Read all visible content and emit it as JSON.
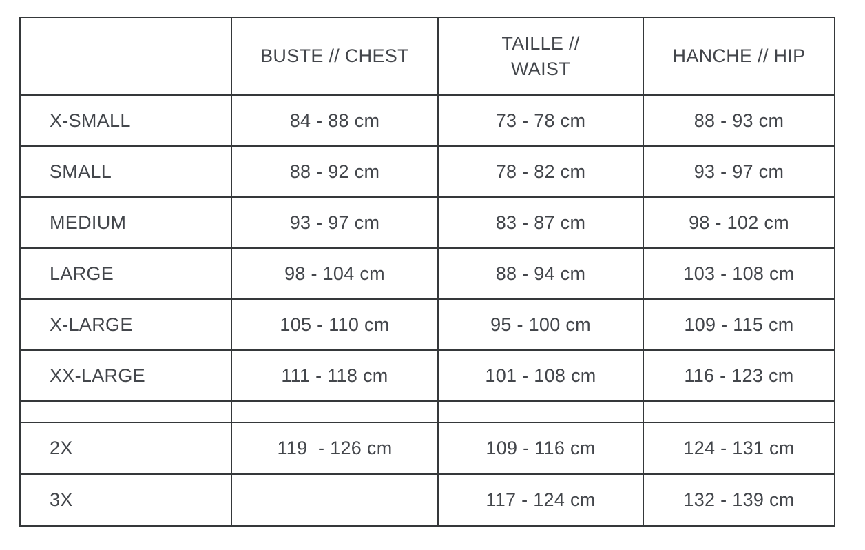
{
  "table": {
    "columns": [
      "",
      "BUSTE // CHEST",
      "TAILLE //\nWAIST",
      "HANCHE // HIP"
    ],
    "rows": [
      {
        "size": "X-SMALL",
        "chest": "84 - 88 cm",
        "waist": "73 - 78 cm",
        "hip": "88 - 93 cm",
        "spacer": false
      },
      {
        "size": "SMALL",
        "chest": "88 - 92 cm",
        "waist": "78 - 82 cm",
        "hip": "93 - 97 cm",
        "spacer": false
      },
      {
        "size": "MEDIUM",
        "chest": "93 - 97 cm",
        "waist": "83 - 87 cm",
        "hip": "98 - 102 cm",
        "spacer": false
      },
      {
        "size": "LARGE",
        "chest": "98 - 104 cm",
        "waist": "88 - 94 cm",
        "hip": "103 - 108 cm",
        "spacer": false
      },
      {
        "size": "X-LARGE",
        "chest": "105 - 110 cm",
        "waist": "95 - 100 cm",
        "hip": "109 - 115 cm",
        "spacer": false
      },
      {
        "size": "XX-LARGE",
        "chest": "111 - 118 cm",
        "waist": "101 - 108 cm",
        "hip": "116 - 123 cm",
        "spacer": false
      },
      {
        "size": "",
        "chest": "",
        "waist": "",
        "hip": "",
        "spacer": true
      },
      {
        "size": "2X",
        "chest": "119  - 126 cm",
        "waist": "109 - 116 cm",
        "hip": "124 - 131 cm",
        "spacer": false
      },
      {
        "size": "3X",
        "chest": "",
        "waist": "117 - 124 cm",
        "hip": "132 - 139 cm",
        "spacer": false
      }
    ],
    "units": "cm",
    "colors": {
      "border": "#35383a",
      "text": "#43464b",
      "background": "#ffffff"
    }
  }
}
